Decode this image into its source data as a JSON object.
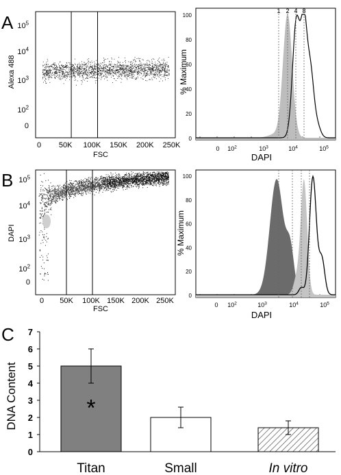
{
  "panels": {
    "A": {
      "letter": "A",
      "scatter": {
        "type": "scatter",
        "ylabel": "Alexa 488",
        "xlabel": "FSC",
        "x_ticks": [
          "0",
          "50K",
          "100K",
          "150K",
          "200K",
          "250K"
        ],
        "y_ticks": [
          "10^5",
          "10^4",
          "10^3",
          "10^2",
          "0"
        ],
        "gates_x": [
          60000,
          110000
        ]
      },
      "histogram": {
        "type": "area",
        "ylabel": "% Maximum",
        "xlabel": "DAPI",
        "y_ticks": [
          0,
          20,
          40,
          60,
          80,
          100
        ],
        "x_ticks": [
          "0",
          "10^2",
          "10^3",
          "10^4",
          "10^5"
        ],
        "ploidy_marks": [
          "1",
          "2",
          "4",
          "8"
        ]
      }
    },
    "B": {
      "letter": "B",
      "scatter": {
        "type": "scatter",
        "ylabel": "DAPI",
        "xlabel": "FSC",
        "x_ticks": [
          "0",
          "50K",
          "100K",
          "150K",
          "200K",
          "250K"
        ],
        "y_ticks": [
          "10^5",
          "10^4",
          "10^3",
          "10^2",
          "0"
        ],
        "gates_x": [
          60000,
          110000
        ]
      },
      "histogram": {
        "type": "area",
        "ylabel": "% Maximum",
        "xlabel": "DAPI",
        "y_ticks": [
          0,
          20,
          40,
          60,
          80,
          100
        ],
        "x_ticks": [
          "0",
          "10^2",
          "10^3",
          "10^4",
          "10^5"
        ]
      }
    },
    "C": {
      "letter": "C",
      "chart_data": {
        "type": "bar",
        "categories": [
          "Titan",
          "Small",
          "In vitro"
        ],
        "values": [
          5.0,
          2.0,
          1.4
        ],
        "errors": [
          1.0,
          0.6,
          0.4
        ],
        "ylabel": "DNA Content",
        "ylim": [
          0,
          7
        ],
        "y_ticks": [
          0,
          1,
          2,
          3,
          4,
          5,
          6,
          7
        ],
        "annotation": "*",
        "colors": [
          "#808080",
          "#ffffff",
          "hatched"
        ]
      }
    }
  }
}
